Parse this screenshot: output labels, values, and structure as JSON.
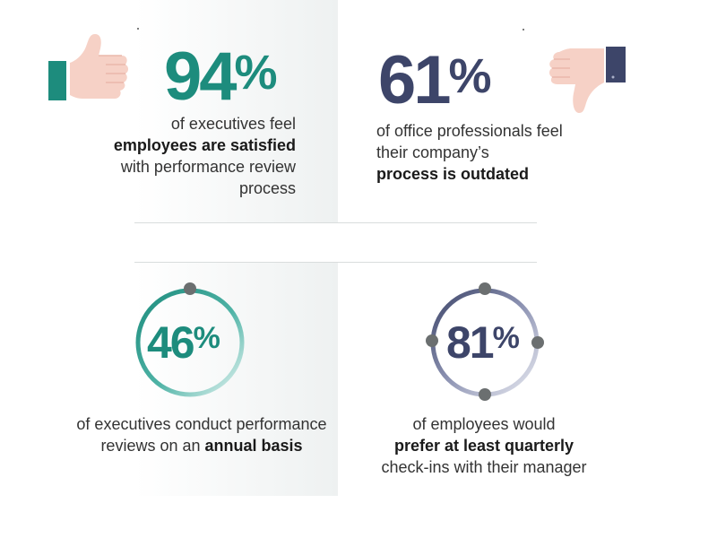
{
  "stats": [
    {
      "value": "94",
      "unit": "%",
      "caption_before": "of executives feel",
      "caption_bold": "employees are satisfied",
      "caption_after": "with performance review process",
      "color": "#1d8c7d",
      "icon": "thumbs-up-icon"
    },
    {
      "value": "61",
      "unit": "%",
      "caption_before": "of office professionals feel their company’s",
      "caption_bold": "process is outdated",
      "caption_after": "",
      "color": "#3d4569",
      "icon": "thumbs-down-icon"
    },
    {
      "value": "46",
      "unit": "%",
      "caption_before": "of executives conduct performance reviews on an",
      "caption_bold": "annual basis",
      "caption_after": "",
      "color": "#1d8c7d",
      "icon": "annual-ring-icon"
    },
    {
      "value": "81",
      "unit": "%",
      "caption_before": "of employees would",
      "caption_bold": "prefer at least quarterly",
      "caption_after": "check-ins with their manager",
      "color": "#3d4569",
      "icon": "quarterly-ring-icon"
    }
  ],
  "colors": {
    "teal": "#1d8c7d",
    "navy": "#3d4569",
    "skin": "#f6d1c6",
    "ring_gray": "#6b6f70"
  }
}
